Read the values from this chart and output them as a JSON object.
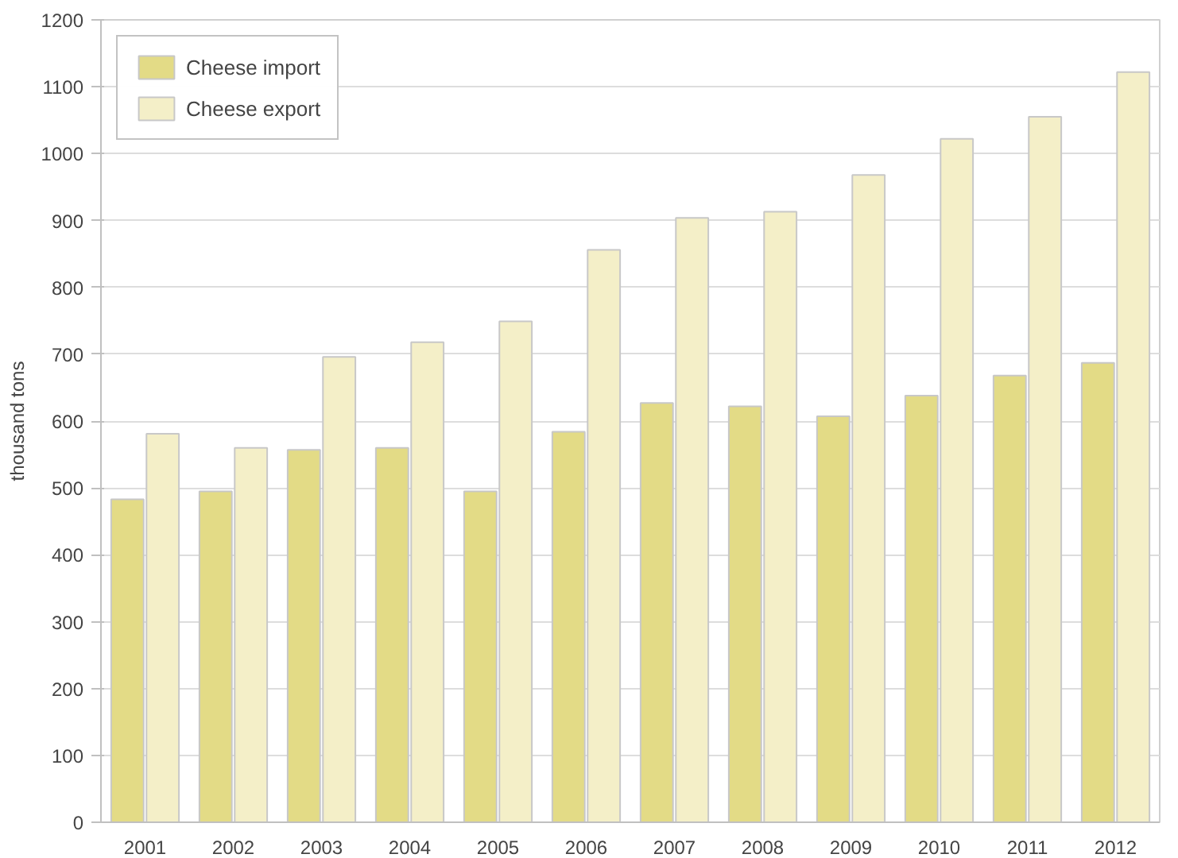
{
  "chart_data": {
    "type": "bar",
    "ylabel": "thousand tons",
    "categories": [
      "2001",
      "2002",
      "2003",
      "2004",
      "2005",
      "2006",
      "2007",
      "2008",
      "2009",
      "2010",
      "2011",
      "2012"
    ],
    "series": [
      {
        "name": "Cheese import",
        "color": "#e3db86",
        "values": [
          483,
          495,
          557,
          560,
          495,
          584,
          627,
          622,
          607,
          638,
          668,
          687
        ]
      },
      {
        "name": "Cheese export",
        "color": "#f4efc8",
        "values": [
          581,
          560,
          696,
          718,
          749,
          856,
          904,
          913,
          968,
          1022,
          1055,
          1122
        ]
      }
    ],
    "ylim": [
      0,
      1200
    ],
    "yticks": [
      0,
      100,
      200,
      300,
      400,
      500,
      600,
      700,
      800,
      900,
      1000,
      1100,
      1200
    ],
    "grid": "y",
    "legend": "top left"
  }
}
